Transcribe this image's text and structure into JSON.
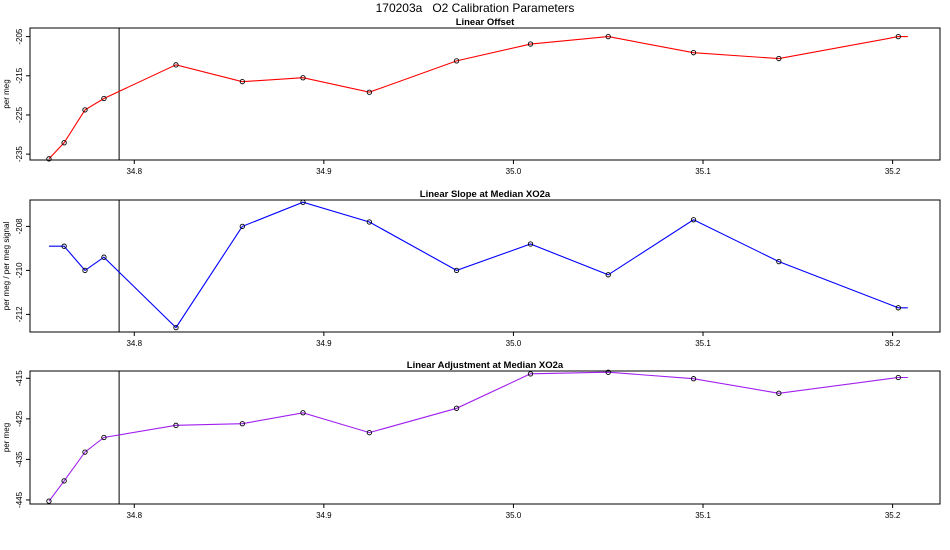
{
  "page": {
    "title": "170203a   O2 Calibration Parameters"
  },
  "chart_data": [
    {
      "type": "line",
      "title": "Linear Offset",
      "ylabel": "per meg",
      "color": "#ff0000",
      "xlim": [
        34.745,
        35.225
      ],
      "ylim": [
        -236.5,
        -202.8
      ],
      "xticks": [
        34.8,
        34.9,
        35.0,
        35.1,
        35.2
      ],
      "xtick_labels": [
        "34.8",
        "34.9",
        "35.0",
        "35.1",
        "35.2"
      ],
      "yticks": [
        -205,
        -215,
        -225,
        -235
      ],
      "ytick_labels": [
        "-205",
        "-215",
        "-225",
        "-235"
      ],
      "vline_x": 34.792,
      "x": [
        34.755,
        34.763,
        34.774,
        34.784,
        34.822,
        34.857,
        34.889,
        34.924,
        34.97,
        35.009,
        35.05,
        35.095,
        35.14,
        35.203,
        35.208
      ],
      "y": [
        -236.2,
        -232.1,
        -223.7,
        -220.8,
        -212.2,
        -216.5,
        -215.5,
        -219.2,
        -211.2,
        -206.9,
        -205.0,
        -209.1,
        -210.6,
        -205.0,
        -205.0
      ],
      "markers": [
        true,
        true,
        true,
        true,
        true,
        true,
        true,
        true,
        true,
        true,
        true,
        true,
        true,
        true,
        false
      ]
    },
    {
      "type": "line",
      "title": "Linear Slope at Median XO2a",
      "ylabel": "per meg / per meg signal",
      "color": "#0000ff",
      "xlim": [
        34.745,
        35.225
      ],
      "ylim": [
        -212.8,
        -206.8
      ],
      "xticks": [
        34.8,
        34.9,
        35.0,
        35.1,
        35.2
      ],
      "xtick_labels": [
        "34.8",
        "34.9",
        "35.0",
        "35.1",
        "35.2"
      ],
      "yticks": [
        -208,
        -210,
        -212
      ],
      "ytick_labels": [
        "-208",
        "-210",
        "-212"
      ],
      "vline_x": 34.792,
      "x": [
        34.755,
        34.763,
        34.774,
        34.784,
        34.822,
        34.857,
        34.889,
        34.924,
        34.97,
        35.009,
        35.05,
        35.095,
        35.14,
        35.203,
        35.208
      ],
      "y": [
        -208.9,
        -208.9,
        -210.0,
        -209.4,
        -212.6,
        -208.0,
        -206.9,
        -207.8,
        -210.0,
        -208.8,
        -210.2,
        -207.7,
        -209.6,
        -211.7,
        -211.7
      ],
      "markers": [
        false,
        true,
        true,
        true,
        true,
        true,
        true,
        true,
        true,
        true,
        true,
        true,
        true,
        true,
        false
      ]
    },
    {
      "type": "line",
      "title": "Linear Adjustment at Median XO2a",
      "ylabel": "per meg",
      "color": "#a020f0",
      "xlim": [
        34.745,
        35.225
      ],
      "ylim": [
        -446.0,
        -413.2
      ],
      "xticks": [
        34.8,
        34.9,
        35.0,
        35.1,
        35.2
      ],
      "xtick_labels": [
        "34.8",
        "34.9",
        "35.0",
        "35.1",
        "35.2"
      ],
      "yticks": [
        -415,
        -425,
        -435,
        -445
      ],
      "ytick_labels": [
        "-415",
        "-425",
        "-435",
        "-445"
      ],
      "vline_x": 34.792,
      "x": [
        34.755,
        34.763,
        34.774,
        34.784,
        34.822,
        34.857,
        34.889,
        34.924,
        34.97,
        35.009,
        35.05,
        35.095,
        35.14,
        35.203,
        35.208
      ],
      "y": [
        -445.3,
        -440.3,
        -433.2,
        -429.6,
        -426.6,
        -426.2,
        -423.5,
        -428.4,
        -422.4,
        -413.9,
        -413.5,
        -415.1,
        -418.7,
        -414.8,
        -414.8
      ],
      "markers": [
        true,
        true,
        true,
        true,
        true,
        true,
        true,
        true,
        true,
        true,
        true,
        true,
        true,
        true,
        false
      ]
    }
  ]
}
